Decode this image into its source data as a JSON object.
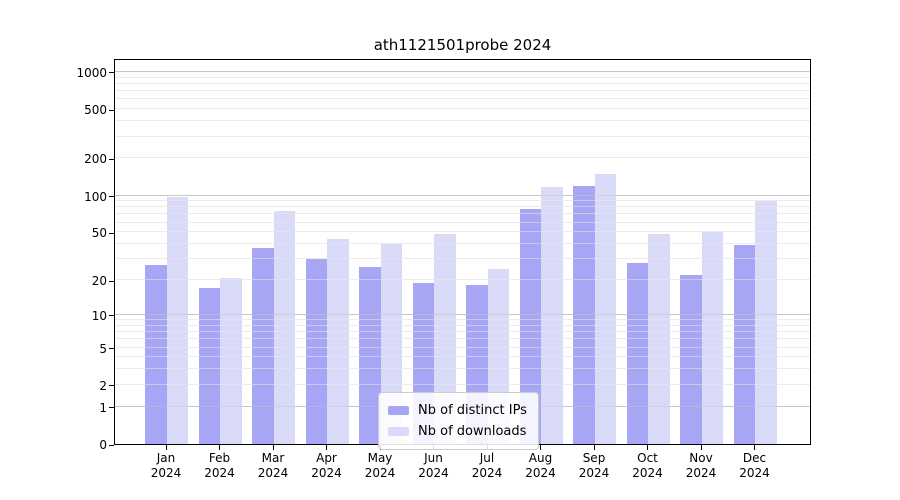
{
  "title": "ath1121501probe 2024",
  "chart_data": {
    "type": "bar",
    "title": "ath1121501probe 2024",
    "categories": [
      "Jan",
      "Feb",
      "Mar",
      "Apr",
      "May",
      "Jun",
      "Jul",
      "Aug",
      "Sep",
      "Oct",
      "Nov",
      "Dec"
    ],
    "category_year": "2024",
    "series": [
      {
        "name": "Nb of distinct IPs",
        "color": "#a6a6f4",
        "values": [
          27,
          17,
          37,
          30,
          26,
          19,
          18,
          78,
          119,
          28,
          22,
          39
        ]
      },
      {
        "name": "Nb of downloads",
        "color": "#d9d9f8",
        "values": [
          97,
          21,
          75,
          44,
          40,
          48,
          25,
          117,
          150,
          48,
          50,
          90
        ]
      }
    ],
    "yscale": "log10(value+1)",
    "ylim": [
      0,
      1300
    ],
    "y_ticks": [
      0,
      1,
      2,
      5,
      10,
      20,
      50,
      100,
      200,
      500,
      1000
    ],
    "major_gridlines": [
      1,
      10,
      100,
      1000
    ],
    "minor_gridlines": [
      2,
      3,
      4,
      5,
      6,
      7,
      8,
      9,
      20,
      30,
      40,
      50,
      60,
      70,
      80,
      90,
      200,
      300,
      400,
      500,
      600,
      700,
      800,
      900
    ],
    "grid": true,
    "legend": {
      "position": "lower center",
      "labels": [
        "Nb of distinct IPs",
        "Nb of downloads"
      ]
    }
  },
  "colors": {
    "bar_distinct_ips": "#a6a6f4",
    "bar_downloads": "#d9d9f8",
    "major_grid": "#c6c6c6",
    "minor_grid": "#ececec",
    "spine": "#000000",
    "legend_border": "#cccccc",
    "legend_background": "rgba(255,255,255,0.88)"
  }
}
